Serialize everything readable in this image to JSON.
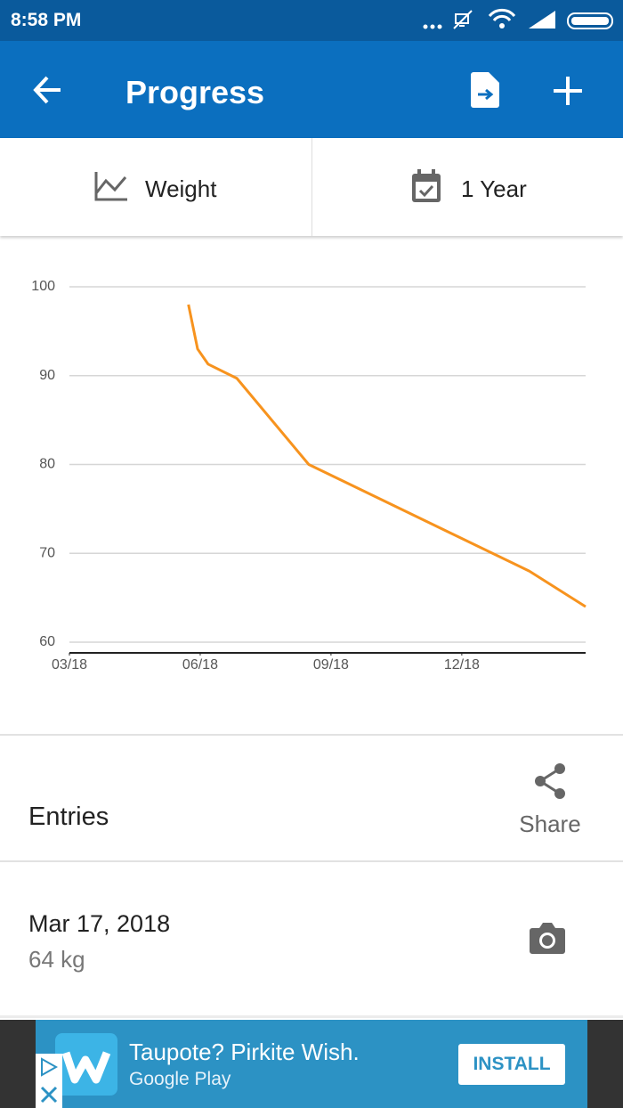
{
  "status_bar": {
    "time": "8:58 PM"
  },
  "app_bar": {
    "title": "Progress"
  },
  "tabs": {
    "metric": "Weight",
    "range": "1 Year"
  },
  "chart_data": {
    "type": "line",
    "x": [
      2.73,
      2.94,
      3.18,
      3.84,
      5.49,
      10.55,
      11.84
    ],
    "values": [
      98,
      93,
      91.3,
      89.7,
      80,
      68,
      64
    ],
    "color": "#f7931e",
    "xlim": [
      0,
      11.84
    ],
    "xticks": [
      {
        "value": 0,
        "label": "03/18"
      },
      {
        "value": 3,
        "label": "06/18"
      },
      {
        "value": 6,
        "label": "09/18"
      },
      {
        "value": 9,
        "label": "12/18"
      }
    ],
    "ylim": [
      58.8,
      100
    ],
    "yticks": [
      60,
      70,
      80,
      90,
      100
    ],
    "grid": true
  },
  "entries": {
    "title": "Entries",
    "share": "Share",
    "items": [
      {
        "date": "Mar 17, 2018",
        "weight": "64 kg"
      }
    ]
  },
  "ad": {
    "headline": "Taupote? Pirkite Wish.",
    "store": "Google Play",
    "button": "INSTALL"
  }
}
